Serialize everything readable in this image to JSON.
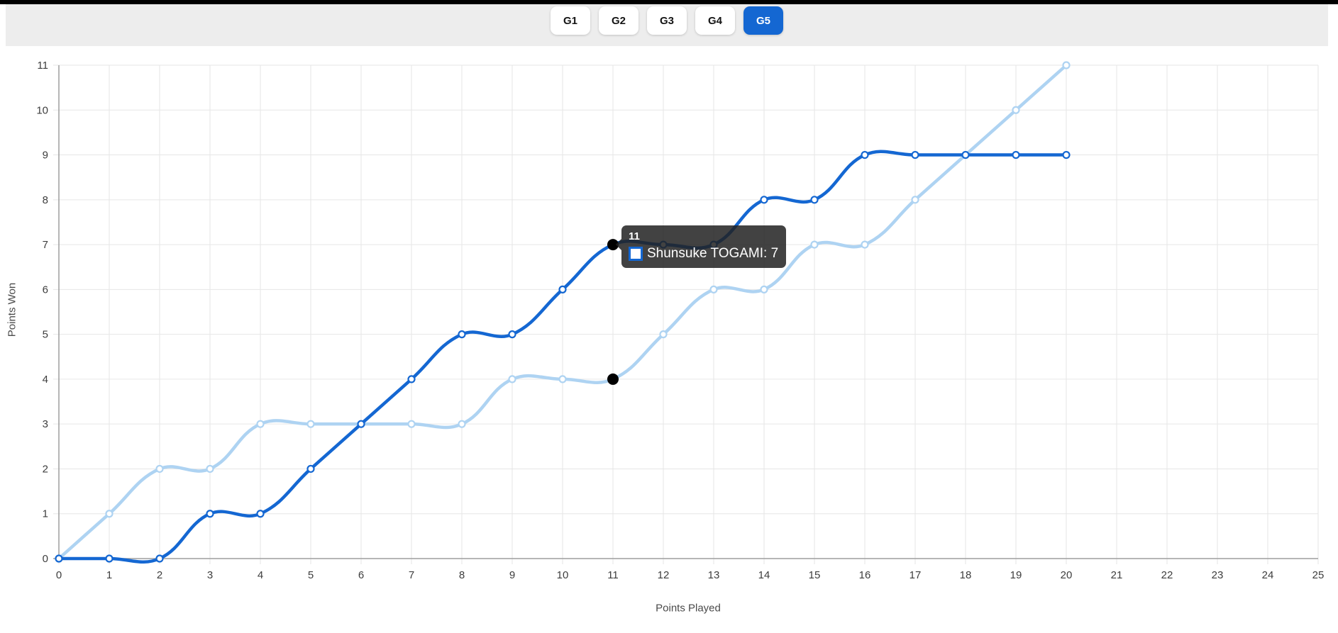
{
  "topbar": {
    "tabs": [
      {
        "label": "G1",
        "active": false
      },
      {
        "label": "G2",
        "active": false
      },
      {
        "label": "G3",
        "active": false
      },
      {
        "label": "G4",
        "active": false
      },
      {
        "label": "G5",
        "active": true
      }
    ]
  },
  "colors": {
    "tab_active_bg": "#1467d2",
    "tab_active_text": "#ffffff",
    "tab_inactive_bg": "#ffffff",
    "topbar_bg": "#ededed",
    "series_dark_blue": "#1467d2",
    "series_light_blue": "#aed3f2",
    "highlight_point": "#000000",
    "grid_line": "#e6e6e6",
    "axis_line": "#9e9e9e",
    "tick_text": "#3d3d3d"
  },
  "chart_data": {
    "type": "line",
    "title": "",
    "xlabel": "Points Played",
    "ylabel": "Points Won",
    "x": [
      0,
      1,
      2,
      3,
      4,
      5,
      6,
      7,
      8,
      9,
      10,
      11,
      12,
      13,
      14,
      15,
      16,
      17,
      18,
      19,
      20
    ],
    "xlim": [
      0,
      25
    ],
    "ylim": [
      0,
      11
    ],
    "x_ticks": [
      0,
      1,
      2,
      3,
      4,
      5,
      6,
      7,
      8,
      9,
      10,
      11,
      12,
      13,
      14,
      15,
      16,
      17,
      18,
      19,
      20,
      21,
      22,
      23,
      24,
      25
    ],
    "y_ticks": [
      0,
      1,
      2,
      3,
      4,
      5,
      6,
      7,
      8,
      9,
      10,
      11
    ],
    "grid": true,
    "legend": "none",
    "line_smoothing": 0.4,
    "series": [
      {
        "name": "Shunsuke TOGAMI",
        "color": "#1467d2",
        "values": [
          0,
          0,
          0,
          1,
          1,
          2,
          3,
          4,
          5,
          5,
          6,
          7,
          7,
          7,
          8,
          8,
          9,
          9,
          9,
          9,
          9
        ]
      },
      {
        "name": "",
        "color": "#aed3f2",
        "values": [
          0,
          1,
          2,
          2,
          3,
          3,
          3,
          3,
          3,
          4,
          4,
          4,
          5,
          6,
          6,
          7,
          7,
          8,
          9,
          10,
          11
        ]
      }
    ],
    "highlight": {
      "x": 11,
      "points": [
        {
          "series_index": 0,
          "y": 7
        },
        {
          "series_index": 1,
          "y": 4
        }
      ]
    },
    "tooltip": {
      "title": "11",
      "label": "Shunsuke TOGAMI: 7"
    }
  }
}
